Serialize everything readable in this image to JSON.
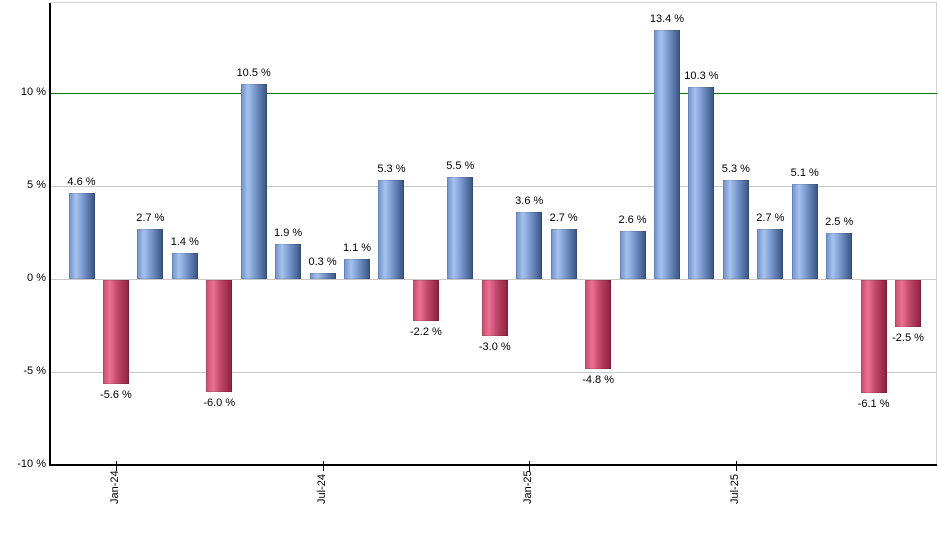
{
  "chart_data": {
    "type": "bar",
    "title": "",
    "description": "Monthly returns bar chart, blue = positive month, red = negative month, green reference line at 10 %",
    "unit": "%",
    "values": [
      4.6,
      -5.6,
      2.7,
      1.4,
      -6.0,
      10.5,
      1.9,
      0.3,
      1.1,
      5.3,
      -2.2,
      5.5,
      -3.0,
      3.6,
      2.7,
      -4.8,
      2.6,
      13.4,
      10.3,
      5.3,
      2.7,
      5.1,
      2.5,
      -6.1,
      -2.5
    ],
    "bar_labels": [
      "4.6 %",
      "-5.6 %",
      "2.7 %",
      "1.4 %",
      "-6.0 %",
      "10.5 %",
      "1.9 %",
      "0.3 %",
      "1.1 %",
      "5.3 %",
      "-2.2 %",
      "5.5 %",
      "-3.0 %",
      "3.6 %",
      "2.7 %",
      "-4.8 %",
      "2.6 %",
      "13.4 %",
      "10.3 %",
      "5.3 %",
      "2.7 %",
      "5.1 %",
      "2.5 %",
      "-6.1 %",
      "-2.5 %"
    ],
    "x_tick_labels": [
      "Jan-24",
      "Jul-24",
      "Jan-25",
      "Jul-25"
    ],
    "x_tick_bar_indexes": [
      1,
      7,
      13,
      19
    ],
    "y_tick_labels": [
      "10 %",
      "5 %",
      "0 %",
      "-5 %",
      "-10 %"
    ],
    "y_tick_values": [
      10,
      5,
      0,
      -5,
      -10
    ],
    "ylim": [
      -10,
      14.8
    ],
    "grid": true,
    "legend": false,
    "reference_line": {
      "value": 10,
      "color": "#007a00"
    },
    "colors": {
      "positive_bar_gradient": [
        "#6e90c8",
        "#a6c2ee",
        "#7897ce",
        "#35527f"
      ],
      "negative_bar_gradient": [
        "#c04e6e",
        "#ee7093",
        "#c04a6b",
        "#8e1e3e"
      ],
      "gridline": "#c9c9c9",
      "plot_border": "#d2d2d2",
      "axis": "#000000",
      "label_text": "#000000"
    }
  }
}
